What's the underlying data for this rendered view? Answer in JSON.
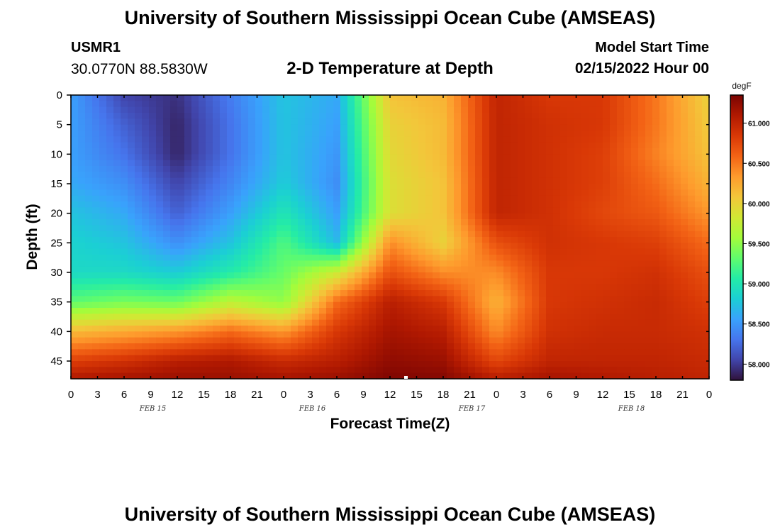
{
  "header": {
    "title": "University of Southern Mississippi Ocean Cube (AMSEAS)",
    "station_id": "USMR1",
    "coords": "30.0770N  88.5830W",
    "subtitle": "2-D Temperature at Depth",
    "start_label": "Model Start Time",
    "start_date": "02/15/2022 Hour 00"
  },
  "footer": {
    "title": "University of Southern Mississippi Ocean Cube (AMSEAS)"
  },
  "colors": {
    "colormap": [
      "#30123b",
      "#4145ab",
      "#4675ed",
      "#39a2fc",
      "#1bcfd4",
      "#24eca6",
      "#61fc6c",
      "#a4fc3b",
      "#d1e834",
      "#f3c63a",
      "#fe9b2d",
      "#f36315",
      "#d93806",
      "#b11901",
      "#7a0402"
    ]
  },
  "chart_data": {
    "type": "heatmap",
    "title": "2-D Temperature at Depth",
    "xlabel": "Forecast Time(Z)",
    "ylabel": "Depth (ft)",
    "units": "degF",
    "x_hours_range": [
      0,
      72
    ],
    "xtick_hours": [
      0,
      3,
      6,
      9,
      12,
      15,
      18,
      21,
      24,
      27,
      30,
      33,
      36,
      39,
      42,
      45,
      48,
      51,
      54,
      57,
      60,
      63,
      66,
      69,
      72
    ],
    "xtick_labels": [
      "0",
      "3",
      "6",
      "9",
      "12",
      "15",
      "18",
      "21",
      "0",
      "3",
      "6",
      "9",
      "12",
      "15",
      "18",
      "21",
      "0",
      "3",
      "6",
      "9",
      "12",
      "15",
      "18",
      "21",
      "0"
    ],
    "date_labels": [
      {
        "hour": 9,
        "label": "FEB 15"
      },
      {
        "hour": 27,
        "label": "FEB 16"
      },
      {
        "hour": 45,
        "label": "FEB 17"
      },
      {
        "hour": 63,
        "label": "FEB 18"
      }
    ],
    "ylim": [
      0,
      48
    ],
    "ytick_values": [
      0,
      5,
      10,
      15,
      20,
      25,
      30,
      35,
      40,
      45
    ],
    "ytick_labels": [
      "0",
      "5",
      "10",
      "15",
      "20",
      "25",
      "30",
      "35",
      "40",
      "45"
    ],
    "colorbar": {
      "vmin": 57.8,
      "vmax": 61.35,
      "tick_values": [
        58.0,
        58.5,
        59.0,
        59.5,
        60.0,
        60.5,
        61.0
      ],
      "tick_labels": [
        "58.000",
        "58.500",
        "59.000",
        "59.500",
        "60.000",
        "60.500",
        "61.000"
      ],
      "unit_label": "degF"
    },
    "grid_depths": [
      0,
      5,
      10,
      15,
      20,
      25,
      30,
      35,
      40,
      45,
      48
    ],
    "grid_hours": [
      0,
      6,
      12,
      18,
      24,
      30,
      36,
      42,
      48,
      54,
      60,
      66,
      72
    ],
    "values": [
      [
        58.55,
        58.05,
        57.95,
        58.35,
        58.75,
        58.6,
        60.1,
        60.2,
        61.0,
        60.85,
        60.85,
        60.5,
        60.0
      ],
      [
        58.55,
        58.2,
        57.9,
        58.3,
        58.75,
        58.55,
        60.0,
        60.15,
        61.0,
        60.9,
        60.85,
        60.5,
        60.05
      ],
      [
        58.55,
        58.3,
        57.9,
        58.3,
        58.75,
        58.5,
        59.95,
        60.15,
        61.0,
        60.9,
        60.8,
        60.45,
        60.1
      ],
      [
        58.6,
        58.45,
        58.05,
        58.4,
        58.8,
        58.45,
        59.9,
        60.1,
        61.0,
        60.9,
        60.8,
        60.55,
        60.2
      ],
      [
        58.75,
        58.6,
        58.2,
        58.55,
        59.0,
        58.55,
        59.9,
        60.1,
        61.0,
        60.9,
        60.75,
        60.65,
        60.35
      ],
      [
        58.85,
        58.75,
        58.45,
        58.75,
        59.25,
        58.7,
        60.4,
        60.0,
        60.7,
        60.9,
        60.85,
        60.8,
        60.55
      ],
      [
        58.9,
        58.9,
        58.8,
        59.05,
        59.35,
        59.8,
        60.7,
        60.4,
        60.4,
        60.85,
        60.85,
        60.9,
        60.7
      ],
      [
        59.3,
        59.4,
        59.35,
        59.7,
        59.5,
        60.55,
        61.05,
        60.85,
        60.2,
        60.85,
        60.9,
        60.95,
        60.8
      ],
      [
        60.15,
        60.25,
        60.35,
        60.55,
        60.35,
        60.85,
        61.15,
        61.05,
        60.4,
        60.9,
        60.95,
        60.95,
        60.9
      ],
      [
        60.8,
        60.9,
        61.05,
        61.1,
        60.95,
        61.05,
        61.25,
        61.2,
        60.75,
        61.0,
        61.0,
        61.0,
        60.95
      ],
      [
        61.1,
        61.15,
        61.2,
        61.2,
        61.15,
        61.2,
        61.32,
        61.3,
        61.05,
        61.15,
        61.1,
        61.05,
        61.0
      ]
    ]
  }
}
